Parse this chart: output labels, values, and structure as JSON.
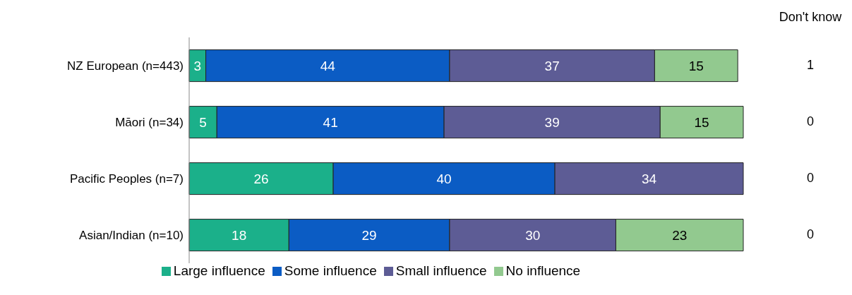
{
  "chart_data": {
    "type": "bar",
    "orientation": "horizontal",
    "stacked": true,
    "data_labels": true,
    "legend": "bottom",
    "categories": [
      "NZ European (n=443)",
      "Māori (n=34)",
      "Pacific Peoples (n=7)",
      "Asian/Indian (n=10)"
    ],
    "series": [
      {
        "name": "Large influence",
        "color": "#1bb08a",
        "values": [
          3,
          5,
          26,
          18
        ]
      },
      {
        "name": "Some influence",
        "color": "#0b5cc4",
        "values": [
          44,
          41,
          40,
          29
        ]
      },
      {
        "name": "Small influence",
        "color": "#5d5c95",
        "values": [
          37,
          39,
          34,
          30
        ]
      },
      {
        "name": "No influence",
        "color": "#92c98f",
        "values": [
          15,
          15,
          null,
          23
        ]
      }
    ],
    "annotations": [
      "Don't know",
      "1",
      "0",
      "0",
      "0"
    ]
  }
}
